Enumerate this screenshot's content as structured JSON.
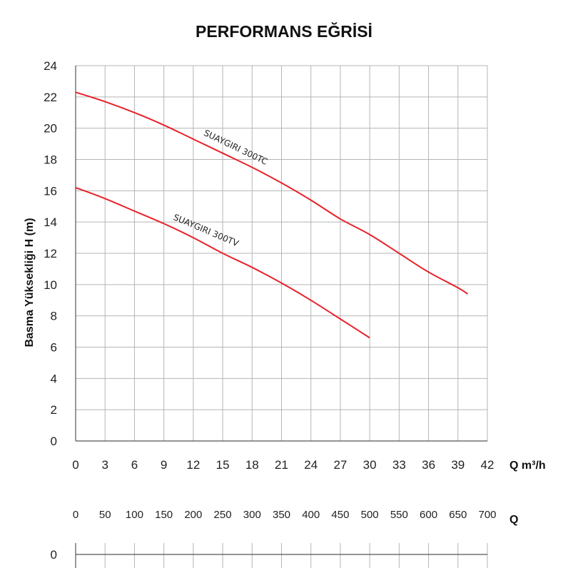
{
  "chart_data": {
    "type": "line",
    "title": "PERFORMANS EĞRİSİ",
    "ylabel": "Basma Yüksekliği H (m)",
    "xlabel": "Q m³/h",
    "xlim": [
      0,
      42
    ],
    "ylim": [
      0,
      24
    ],
    "x_ticks": [
      0,
      3,
      6,
      9,
      12,
      15,
      18,
      21,
      24,
      27,
      30,
      33,
      36,
      39,
      42
    ],
    "y_ticks": [
      0,
      2,
      4,
      6,
      8,
      10,
      12,
      14,
      16,
      18,
      20,
      22,
      24
    ],
    "grid": true,
    "secondary_axis": {
      "label": "Q",
      "ticks": [
        "0",
        "50",
        "100",
        "150",
        "200",
        "250",
        "300",
        "350",
        "400",
        "450",
        "500",
        "550",
        "600",
        "650",
        "700"
      ],
      "y_tick": "0"
    },
    "series": [
      {
        "name": "SUAYGIRI 300TC",
        "color": "#e8212a",
        "x": [
          0,
          3,
          6,
          9,
          12,
          15,
          18,
          21,
          24,
          27,
          30,
          33,
          36,
          39,
          40
        ],
        "y": [
          22.3,
          21.7,
          21.0,
          20.2,
          19.3,
          18.4,
          17.5,
          16.5,
          15.4,
          14.2,
          13.2,
          12.0,
          10.8,
          9.8,
          9.4
        ]
      },
      {
        "name": "SUAYGIRI 300TV",
        "color": "#e8212a",
        "x": [
          0,
          3,
          6,
          9,
          12,
          15,
          18,
          21,
          24,
          27,
          30
        ],
        "y": [
          16.2,
          15.5,
          14.7,
          13.9,
          13.0,
          12.0,
          11.1,
          10.1,
          9.0,
          7.8,
          6.6
        ]
      }
    ]
  }
}
